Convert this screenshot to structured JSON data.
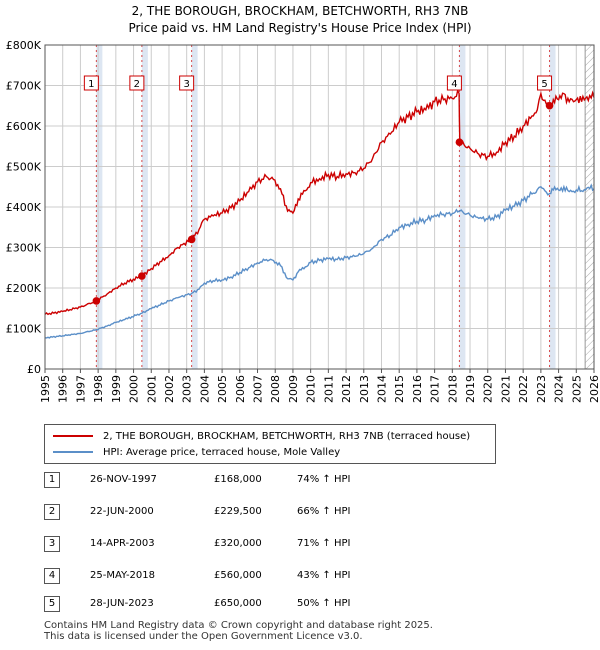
{
  "title_line1": "2, THE BOROUGH, BROCKHAM, BETCHWORTH, RH3 7NB",
  "title_line2": "Price paid vs. HM Land Registry's House Price Index (HPI)",
  "colors": {
    "property": "#cc0000",
    "hpi": "#5b8fc8",
    "grid": "#cccccc",
    "shade": "#dde6f2",
    "hatch": "#aaaaaa"
  },
  "chart_data": {
    "type": "line",
    "title": "2, THE BOROUGH, BROCKHAM, BETCHWORTH, RH3 7NB — Price paid vs. HM Land Registry's House Price Index (HPI)",
    "xlabel": "",
    "ylabel": "",
    "xlim": [
      1995,
      2026
    ],
    "ylim": [
      0,
      800000
    ],
    "y_ticks": [
      0,
      100000,
      200000,
      300000,
      400000,
      500000,
      600000,
      700000,
      800000
    ],
    "y_tick_labels": [
      "£0",
      "£100K",
      "£200K",
      "£300K",
      "£400K",
      "£500K",
      "£600K",
      "£700K",
      "£800K"
    ],
    "x_ticks": [
      1995,
      1996,
      1997,
      1998,
      1999,
      2000,
      2001,
      2002,
      2003,
      2004,
      2005,
      2006,
      2007,
      2008,
      2009,
      2010,
      2011,
      2012,
      2013,
      2014,
      2015,
      2016,
      2017,
      2018,
      2019,
      2020,
      2021,
      2022,
      2023,
      2024,
      2025,
      2026
    ],
    "grid": true,
    "series": [
      {
        "name": "2, THE BOROUGH, BROCKHAM, BETCHWORTH, RH3 7NB (terraced house)",
        "color": "#cc0000",
        "x": [
          1995.0,
          1996.0,
          1997.0,
          1997.9,
          1998.5,
          1999.0,
          1999.5,
          2000.47,
          2001.0,
          2002.0,
          2002.5,
          2003.28,
          2003.7,
          2004.0,
          2004.5,
          2005.0,
          2005.5,
          2006.0,
          2006.5,
          2007.0,
          2007.5,
          2007.9,
          2008.3,
          2008.7,
          2009.0,
          2009.3,
          2009.7,
          2010.0,
          2010.5,
          2011.0,
          2011.5,
          2012.0,
          2012.5,
          2013.0,
          2013.5,
          2014.0,
          2014.5,
          2015.0,
          2015.5,
          2016.0,
          2016.5,
          2017.0,
          2017.5,
          2018.0,
          2018.38,
          2018.42,
          2019.0,
          2019.5,
          2020.0,
          2020.5,
          2021.0,
          2021.5,
          2022.0,
          2022.5,
          2022.8,
          2023.0,
          2023.3,
          2023.49,
          2023.7,
          2024.0,
          2024.3,
          2024.6,
          2025.0,
          2025.3,
          2025.6,
          2026.0
        ],
        "values": [
          135000,
          142000,
          153000,
          168000,
          185000,
          200000,
          212000,
          229500,
          248000,
          280000,
          300000,
          320000,
          345000,
          370000,
          378000,
          385000,
          398000,
          415000,
          438000,
          462000,
          475000,
          468000,
          445000,
          390000,
          385000,
          420000,
          440000,
          460000,
          470000,
          480000,
          475000,
          482000,
          485000,
          495000,
          520000,
          560000,
          580000,
          610000,
          622000,
          635000,
          640000,
          660000,
          665000,
          668000,
          680000,
          560000,
          545000,
          530000,
          525000,
          535000,
          560000,
          575000,
          600000,
          625000,
          640000,
          680000,
          655000,
          650000,
          665000,
          665000,
          680000,
          660000,
          665000,
          660000,
          672000,
          670000
        ]
      },
      {
        "name": "HPI: Average price, terraced house, Mole Valley",
        "color": "#5b8fc8",
        "x": [
          1995.0,
          1996.0,
          1997.0,
          1997.9,
          1998.5,
          1999.0,
          1999.5,
          2000.47,
          2001.0,
          2002.0,
          2002.5,
          2003.28,
          2003.7,
          2004.0,
          2004.5,
          2005.0,
          2005.5,
          2006.0,
          2006.5,
          2007.0,
          2007.5,
          2007.9,
          2008.3,
          2008.7,
          2009.0,
          2009.3,
          2009.7,
          2010.0,
          2010.5,
          2011.0,
          2011.5,
          2012.0,
          2012.5,
          2013.0,
          2013.5,
          2014.0,
          2014.5,
          2015.0,
          2015.5,
          2016.0,
          2016.5,
          2017.0,
          2017.5,
          2018.0,
          2018.38,
          2018.42,
          2019.0,
          2019.5,
          2020.0,
          2020.5,
          2021.0,
          2021.5,
          2022.0,
          2022.5,
          2022.8,
          2023.0,
          2023.3,
          2023.49,
          2023.7,
          2024.0,
          2024.3,
          2024.6,
          2025.0,
          2025.3,
          2025.6,
          2026.0
        ],
        "values": [
          77000,
          82000,
          88000,
          97000,
          106000,
          115000,
          122000,
          138000,
          149000,
          168000,
          176000,
          187000,
          197000,
          212000,
          218000,
          220000,
          227000,
          238000,
          250000,
          262000,
          270000,
          268000,
          255000,
          223000,
          220000,
          240000,
          252000,
          263000,
          268000,
          272000,
          270000,
          275000,
          278000,
          285000,
          298000,
          320000,
          330000,
          350000,
          357000,
          365000,
          368000,
          380000,
          382000,
          384000,
          390000,
          390000,
          380000,
          372000,
          370000,
          375000,
          392000,
          402000,
          416000,
          432000,
          443000,
          450000,
          437000,
          433000,
          442000,
          442000,
          450000,
          438000,
          442000,
          440000,
          447000,
          445000
        ]
      }
    ],
    "transactions": [
      {
        "num": "1",
        "x": 1997.9,
        "value": 168000,
        "date": "26-NOV-1997",
        "price": "£168,000",
        "hpi": "74% ↑ HPI"
      },
      {
        "num": "2",
        "x": 2000.47,
        "value": 229500,
        "date": "22-JUN-2000",
        "price": "£229,500",
        "hpi": "66% ↑ HPI"
      },
      {
        "num": "3",
        "x": 2003.28,
        "value": 320000,
        "date": "14-APR-2003",
        "price": "£320,000",
        "hpi": "71% ↑ HPI"
      },
      {
        "num": "4",
        "x": 2018.4,
        "value": 560000,
        "date": "25-MAY-2018",
        "price": "£560,000",
        "hpi": "43% ↑ HPI"
      },
      {
        "num": "5",
        "x": 2023.49,
        "value": 650000,
        "date": "28-JUN-2023",
        "price": "£650,000",
        "hpi": "50% ↑ HPI"
      }
    ],
    "data_end_year": 2025.5
  },
  "legend": {
    "property_label": "2, THE BOROUGH, BROCKHAM, BETCHWORTH, RH3 7NB (terraced house)",
    "hpi_label": "HPI: Average price, terraced house, Mole Valley"
  },
  "footer": {
    "line1": "Contains HM Land Registry data © Crown copyright and database right 2025.",
    "line2": "This data is licensed under the Open Government Licence v3.0."
  }
}
